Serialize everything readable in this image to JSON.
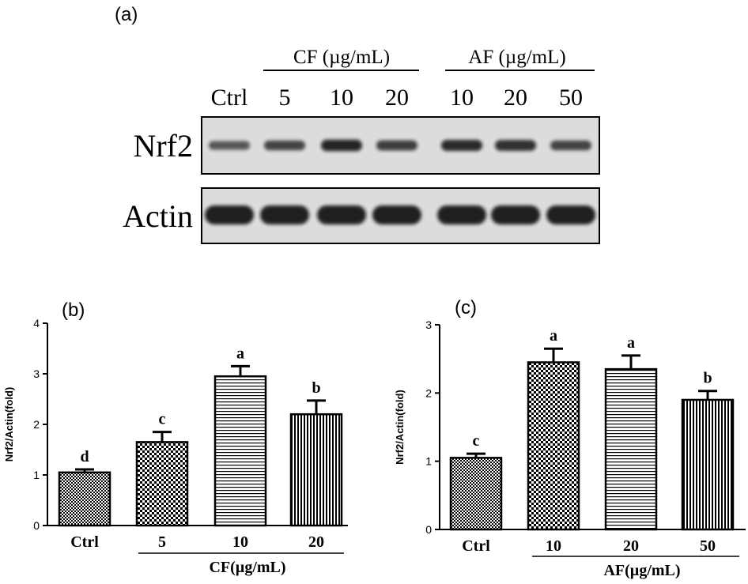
{
  "colors": {
    "ink": "#000000",
    "background": "#ffffff",
    "blot_bg": "#dcdcdc",
    "band": "#141414"
  },
  "patterns": [
    "fine-checker",
    "checker",
    "horizontal-lines",
    "vertical-lines"
  ],
  "panel_a": {
    "label": "(a)",
    "groups": [
      {
        "text": "CF  (µg/mL)"
      },
      {
        "text": "AF (µg/mL)"
      }
    ],
    "lanes": [
      "Ctrl",
      "5",
      "10",
      "20",
      "10",
      "20",
      "50"
    ],
    "blots": [
      {
        "name": "Nrf2",
        "intensity": [
          0.55,
          0.7,
          0.95,
          0.75,
          0.9,
          0.85,
          0.7
        ]
      },
      {
        "name": "Actin",
        "intensity": [
          1,
          1,
          1,
          1,
          1,
          1,
          1
        ]
      }
    ]
  },
  "chart_data": [
    {
      "type": "bar",
      "label": "(b)",
      "categories": [
        "Ctrl",
        "5",
        "10",
        "20"
      ],
      "values": [
        1.05,
        1.65,
        2.95,
        2.2
      ],
      "errors": [
        0.06,
        0.2,
        0.2,
        0.27
      ],
      "letters": [
        "d",
        "c",
        "a",
        "b"
      ],
      "ylabel": "Nrf2/Actin(fold)",
      "xlabel": "CF(µg/mL)",
      "ylim": [
        0,
        4
      ],
      "yticks": [
        0,
        1,
        2,
        3,
        4
      ],
      "patterns": [
        "fine-checker",
        "checker",
        "horizontal-lines",
        "vertical-lines"
      ]
    },
    {
      "type": "bar",
      "label": "(c)",
      "categories": [
        "Ctrl",
        "10",
        "20",
        "50"
      ],
      "values": [
        1.05,
        2.45,
        2.35,
        1.9
      ],
      "errors": [
        0.06,
        0.2,
        0.2,
        0.13
      ],
      "letters": [
        "c",
        "a",
        "a",
        "b"
      ],
      "ylabel": "Nrf2/Actin(fold)",
      "xlabel": "AF(µg/mL)",
      "ylim": [
        0,
        3
      ],
      "yticks": [
        0,
        1,
        2,
        3
      ],
      "patterns": [
        "fine-checker",
        "checker",
        "horizontal-lines",
        "vertical-lines"
      ]
    }
  ]
}
